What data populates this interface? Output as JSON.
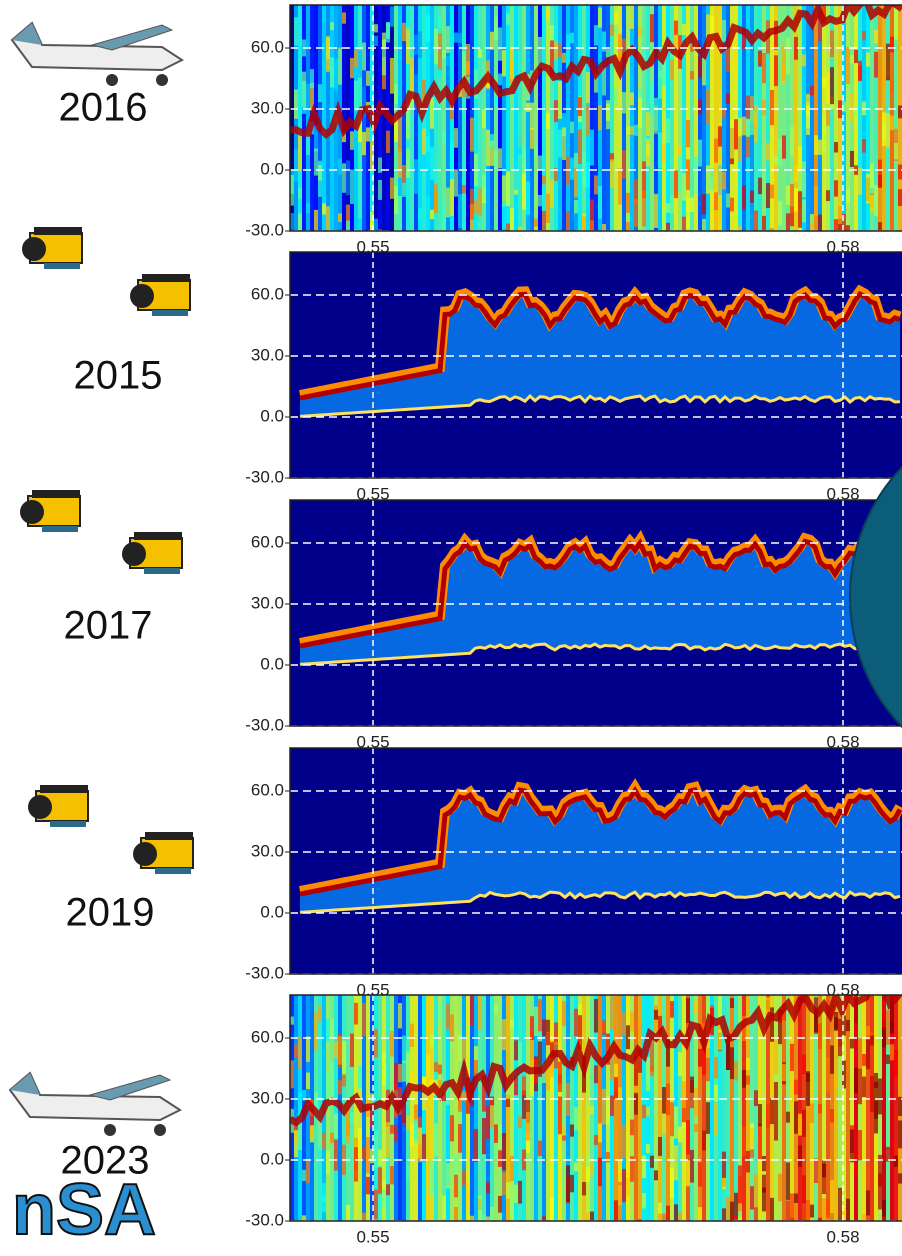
{
  "panels": [
    {
      "year": "2016",
      "yticks": [
        "60.0",
        "30.0",
        "0.0",
        "-30.0"
      ],
      "xticks": [
        "0.55",
        "0.58"
      ]
    },
    {
      "year": "2015",
      "yticks": [
        "60.0",
        "30.0",
        "0.0",
        "-30.0"
      ],
      "xticks": [
        "0.55",
        "0.58"
      ]
    },
    {
      "year": "2017",
      "yticks": [
        "60.0",
        "30.0",
        "0.0",
        "-30.0"
      ],
      "xticks": [
        "0.55",
        "0.58"
      ]
    },
    {
      "year": "2019",
      "yticks": [
        "60.0",
        "30.0",
        "0.0",
        "-30.0"
      ],
      "xticks": [
        "0.55",
        "0.58"
      ]
    },
    {
      "year": "2023",
      "yticks": [
        "60.0",
        "30.0",
        "0.0",
        "-30.0"
      ],
      "xticks": [
        "0.55",
        "0.58"
      ]
    }
  ],
  "logo": "nSA"
}
